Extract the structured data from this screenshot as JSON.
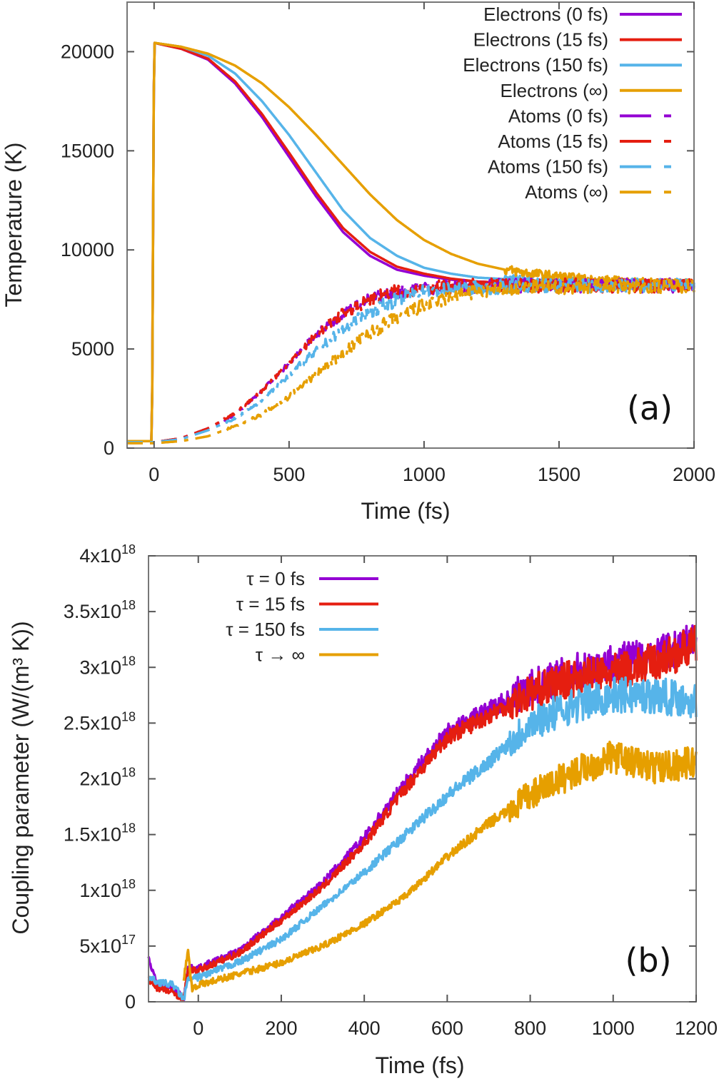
{
  "chart_data": [
    {
      "type": "line",
      "panel_label": "(a)",
      "xlabel": "Time (fs)",
      "ylabel": "Temperature (K)",
      "xlim": [
        -100,
        2000
      ],
      "ylim": [
        0,
        22500
      ],
      "xticks": [
        0,
        500,
        1000,
        1500,
        2000
      ],
      "yticks": [
        0,
        5000,
        10000,
        15000,
        20000
      ],
      "legend_position": "top-right",
      "grid": false,
      "series": [
        {
          "name": "Electrons (0 fs)",
          "color": "#9400D3",
          "style": "solid",
          "x": [
            -100,
            -8,
            0,
            100,
            200,
            300,
            400,
            500,
            600,
            700,
            800,
            900,
            1000,
            1100,
            1200,
            1400,
            1600,
            2000
          ],
          "y": [
            350,
            350,
            20450,
            20150,
            19600,
            18400,
            16700,
            14700,
            12700,
            10900,
            9700,
            9000,
            8700,
            8500,
            8400,
            8300,
            8300,
            8250
          ]
        },
        {
          "name": "Electrons (15 fs)",
          "color": "#E51E10",
          "style": "solid",
          "x": [
            -100,
            -8,
            0,
            100,
            200,
            300,
            400,
            500,
            600,
            700,
            800,
            900,
            1000,
            1100,
            1200,
            1400,
            1600,
            2000
          ],
          "y": [
            350,
            350,
            20450,
            20150,
            19650,
            18500,
            16850,
            14900,
            12900,
            11100,
            9900,
            9150,
            8800,
            8550,
            8400,
            8300,
            8300,
            8250
          ]
        },
        {
          "name": "Electrons (150 fs)",
          "color": "#56B4E9",
          "style": "solid",
          "x": [
            -100,
            -8,
            0,
            100,
            200,
            300,
            400,
            500,
            600,
            700,
            800,
            900,
            1000,
            1100,
            1200,
            1400,
            1600,
            2000
          ],
          "y": [
            350,
            350,
            20450,
            20250,
            19800,
            18900,
            17500,
            15800,
            13900,
            12000,
            10600,
            9700,
            9100,
            8800,
            8600,
            8450,
            8350,
            8250
          ]
        },
        {
          "name": "Electrons (∞)",
          "color": "#E69F00",
          "style": "solid",
          "x": [
            -100,
            -8,
            0,
            100,
            200,
            300,
            400,
            500,
            600,
            700,
            800,
            900,
            1000,
            1100,
            1200,
            1300,
            1400,
            1500,
            1600,
            1800,
            2000
          ],
          "y": [
            350,
            350,
            20450,
            20250,
            19900,
            19300,
            18400,
            17200,
            15800,
            14300,
            12800,
            11500,
            10500,
            9800,
            9300,
            9000,
            8800,
            8650,
            8500,
            8350,
            8250
          ]
        },
        {
          "name": "Atoms (0 fs)",
          "color": "#9400D3",
          "style": "dashdot",
          "x": [
            -100,
            0,
            100,
            200,
            300,
            400,
            500,
            600,
            700,
            800,
            900,
            1000,
            1200,
            1500,
            2000
          ],
          "y": [
            300,
            300,
            500,
            1000,
            1700,
            2900,
            4300,
            5700,
            6800,
            7500,
            7900,
            8100,
            8200,
            8200,
            8200
          ]
        },
        {
          "name": "Atoms (15 fs)",
          "color": "#E51E10",
          "style": "dashdot",
          "x": [
            -100,
            0,
            100,
            200,
            300,
            400,
            500,
            600,
            700,
            800,
            900,
            1000,
            1200,
            1500,
            2000
          ],
          "y": [
            300,
            300,
            500,
            1000,
            1750,
            2900,
            4300,
            5700,
            6800,
            7500,
            7900,
            8100,
            8200,
            8200,
            8200
          ]
        },
        {
          "name": "Atoms (150 fs)",
          "color": "#56B4E9",
          "style": "dashdot",
          "x": [
            -100,
            0,
            100,
            200,
            300,
            400,
            500,
            600,
            700,
            800,
            900,
            1000,
            1200,
            1500,
            2000
          ],
          "y": [
            300,
            300,
            450,
            900,
            1500,
            2400,
            3700,
            4900,
            6000,
            6900,
            7500,
            7900,
            8100,
            8200,
            8200
          ]
        },
        {
          "name": "Atoms (∞)",
          "color": "#E69F00",
          "style": "dashdot",
          "x": [
            -100,
            0,
            100,
            200,
            300,
            400,
            500,
            600,
            700,
            800,
            900,
            1000,
            1100,
            1200,
            1400,
            2000
          ],
          "y": [
            250,
            250,
            350,
            600,
            1100,
            1700,
            2600,
            3700,
            4800,
            5800,
            6600,
            7200,
            7600,
            7900,
            8100,
            8200
          ]
        }
      ]
    },
    {
      "type": "line",
      "panel_label": "(b)",
      "xlabel": "Time (fs)",
      "ylabel": "Coupling parameter (W/(m³ K))",
      "xlim": [
        -120,
        1200
      ],
      "ylim": [
        0,
        4e+18
      ],
      "xticks": [
        0,
        200,
        400,
        600,
        800,
        1000,
        1200
      ],
      "yticks": [
        0,
        5e+17,
        1e+18,
        1.5e+18,
        2e+18,
        2.5e+18,
        3e+18,
        3.5e+18,
        4e+18
      ],
      "ytick_labels": [
        {
          "base": "0",
          "exp": ""
        },
        {
          "base": "5x10",
          "exp": "17"
        },
        {
          "base": "1x10",
          "exp": "18"
        },
        {
          "base": "1.5x10",
          "exp": "18"
        },
        {
          "base": "2x10",
          "exp": "18"
        },
        {
          "base": "2.5x10",
          "exp": "18"
        },
        {
          "base": "3x10",
          "exp": "18"
        },
        {
          "base": "3.5x10",
          "exp": "18"
        },
        {
          "base": "4x10",
          "exp": "18"
        }
      ],
      "legend_position": "top-left",
      "grid": false,
      "series": [
        {
          "name": "τ = 0 fs",
          "color": "#9400D3",
          "x": [
            -120,
            -100,
            -60,
            -35,
            -25,
            0,
            100,
            200,
            300,
            400,
            500,
            600,
            700,
            800,
            900,
            1000,
            1100,
            1200
          ],
          "y": [
            4e+17,
            1.5e+17,
            1.2e+17,
            3e+16,
            3e+17,
            3e+17,
            4.6e+17,
            7.6e+17,
            1.07e+18,
            1.47e+18,
            1.97e+18,
            2.42e+18,
            2.62e+18,
            2.82e+18,
            2.95e+18,
            3.05e+18,
            3.1e+18,
            3.25e+18
          ]
        },
        {
          "name": "τ = 15 fs",
          "color": "#E51E10",
          "x": [
            -120,
            -100,
            -60,
            -35,
            -25,
            0,
            100,
            200,
            300,
            400,
            500,
            600,
            700,
            800,
            900,
            1000,
            1100,
            1200
          ],
          "y": [
            2e+17,
            1.3e+17,
            8e+16,
            3e+16,
            2.8e+17,
            2.8e+17,
            4.4e+17,
            7.3e+17,
            1.03e+18,
            1.42e+18,
            1.92e+18,
            2.37e+18,
            2.57e+18,
            2.77e+18,
            2.9e+18,
            2.95e+18,
            3.05e+18,
            3.2e+18
          ]
        },
        {
          "name": "τ = 150 fs",
          "color": "#56B4E9",
          "x": [
            -120,
            -100,
            -60,
            -35,
            -25,
            0,
            100,
            200,
            300,
            400,
            500,
            600,
            700,
            800,
            900,
            1000,
            1100,
            1200
          ],
          "y": [
            2.2e+17,
            1.8e+17,
            1.5e+17,
            2e+16,
            2e+17,
            2.2e+17,
            3.6e+17,
            5.6e+17,
            8.6e+17,
            1.16e+18,
            1.5e+18,
            1.85e+18,
            2.15e+18,
            2.5e+18,
            2.65e+18,
            2.75e+18,
            2.75e+18,
            2.7e+18
          ]
        },
        {
          "name": "τ → ∞",
          "color": "#E69F00",
          "x": [
            -35,
            -25,
            -15,
            0,
            100,
            200,
            300,
            400,
            500,
            600,
            700,
            800,
            900,
            1000,
            1100,
            1200
          ],
          "y": [
            2e+17,
            4.5e+17,
            1.2e+17,
            1.5e+17,
            2.5e+17,
            3.5e+17,
            5e+17,
            7e+17,
            9.5e+17,
            1.3e+18,
            1.6e+18,
            1.85e+18,
            2.05e+18,
            2.2e+18,
            2.1e+18,
            2.15e+18
          ]
        }
      ]
    }
  ]
}
